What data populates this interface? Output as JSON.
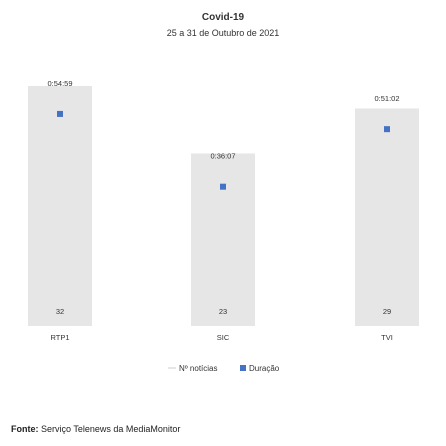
{
  "chart_data": {
    "type": "bar",
    "title": "Covid-19",
    "subtitle": "25 a 31 de Outubro de 2021",
    "categories": [
      "RTP1",
      "SIC",
      "TVI"
    ],
    "series": [
      {
        "name": "Nº notícias",
        "values": [
          32,
          23,
          29
        ],
        "color": "#e6e6e6"
      },
      {
        "name": "Duração",
        "values": [
          "0:54:59",
          "0:36:07",
          "0:51:02"
        ],
        "seconds": [
          3299,
          2167,
          3062
        ],
        "color": "#4472c4"
      }
    ],
    "ylim": [
      0,
      36
    ],
    "secondary_ylim_seconds": [
      0,
      4200
    ],
    "grid": false,
    "legend": "bottom"
  },
  "source": {
    "label": "Fonte:",
    "text": "Serviço Telenews da MediaMonitor"
  }
}
